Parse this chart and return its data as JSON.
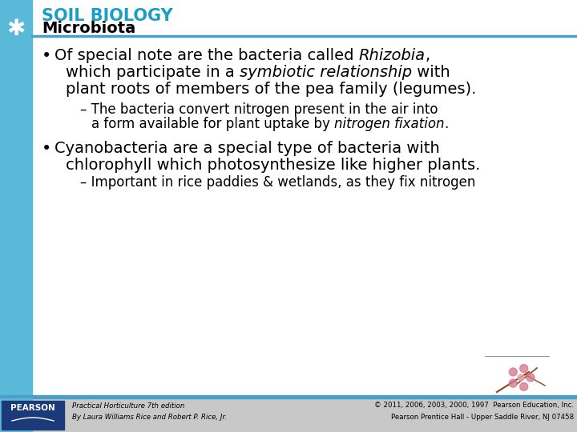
{
  "title_topic": "SOIL BIOLOGY",
  "title_sub": "Microbiota",
  "sidebar_color": "#5ab8d8",
  "title_color": "#1a9fc4",
  "divider_color": "#4a9fc8",
  "background_color": "#ffffff",
  "footer_bar_color": "#4a9fc8",
  "footer_bg_color": "#c8c8c8",
  "pearson_box_color": "#1a3a7a",
  "footer_left1": "Practical Horticulture 7th edition",
  "footer_left2": "By Laura Williams Rice and Robert P. Rice, Jr.",
  "footer_right1": "© 2011, 2006, 2003, 2000, 1997  Pearson Education, Inc.",
  "footer_right2": "Pearson Prentice Hall - Upper Saddle River, NJ 07458"
}
